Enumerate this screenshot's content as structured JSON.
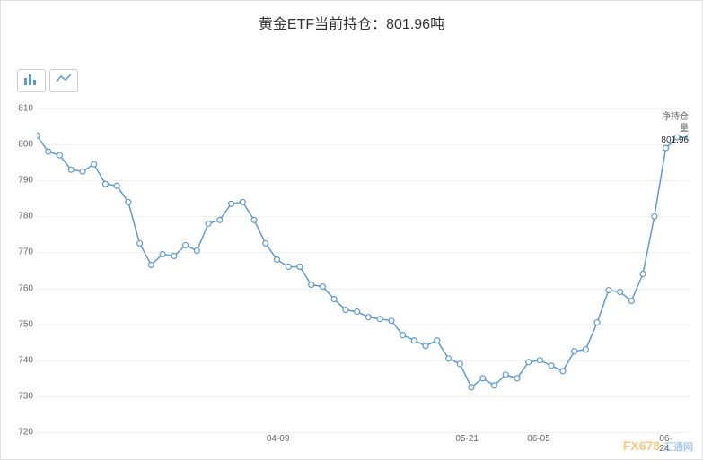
{
  "title": "黄金ETF当前持仓：801.96吨",
  "chart": {
    "type": "line",
    "line_color": "#5b9bd5",
    "marker_color": "#5b9bd5",
    "marker_fill": "#ffffff",
    "marker_size": 3,
    "line_width": 1.5,
    "background_color": "#ffffff",
    "grid_color": "#f0f0f0",
    "ylim": [
      720,
      810
    ],
    "ytick_step": 10,
    "yticks": [
      720,
      730,
      740,
      750,
      760,
      770,
      780,
      790,
      800,
      810
    ],
    "xticks": [
      {
        "pos": 0.37,
        "label": "04-09"
      },
      {
        "pos": 0.66,
        "label": "05-21"
      },
      {
        "pos": 0.77,
        "label": "06-05"
      },
      {
        "pos": 0.97,
        "label": "06-24"
      }
    ],
    "data": [
      802.5,
      798,
      797,
      793,
      792.5,
      794.5,
      789,
      788.5,
      784,
      772.5,
      766.5,
      769.5,
      769,
      772,
      770.5,
      778,
      779,
      783.5,
      784,
      779,
      772.5,
      768,
      766,
      766,
      761,
      760.5,
      757,
      754,
      753.5,
      752,
      751.5,
      751,
      747,
      745.5,
      744,
      745.5,
      740.5,
      739,
      732.5,
      735,
      733,
      736,
      735,
      739.5,
      740,
      738.5,
      737,
      742.5,
      743,
      750.5,
      759.5,
      759,
      756.5,
      764,
      780,
      799,
      802,
      801.96
    ],
    "tooltip": {
      "label": "净持仓量",
      "value": "801.96"
    }
  },
  "toolbar": {
    "bar_icon": "bar-chart",
    "line_icon": "line-chart"
  },
  "watermark": {
    "brand": "FX678",
    "sub": "汇通网"
  }
}
